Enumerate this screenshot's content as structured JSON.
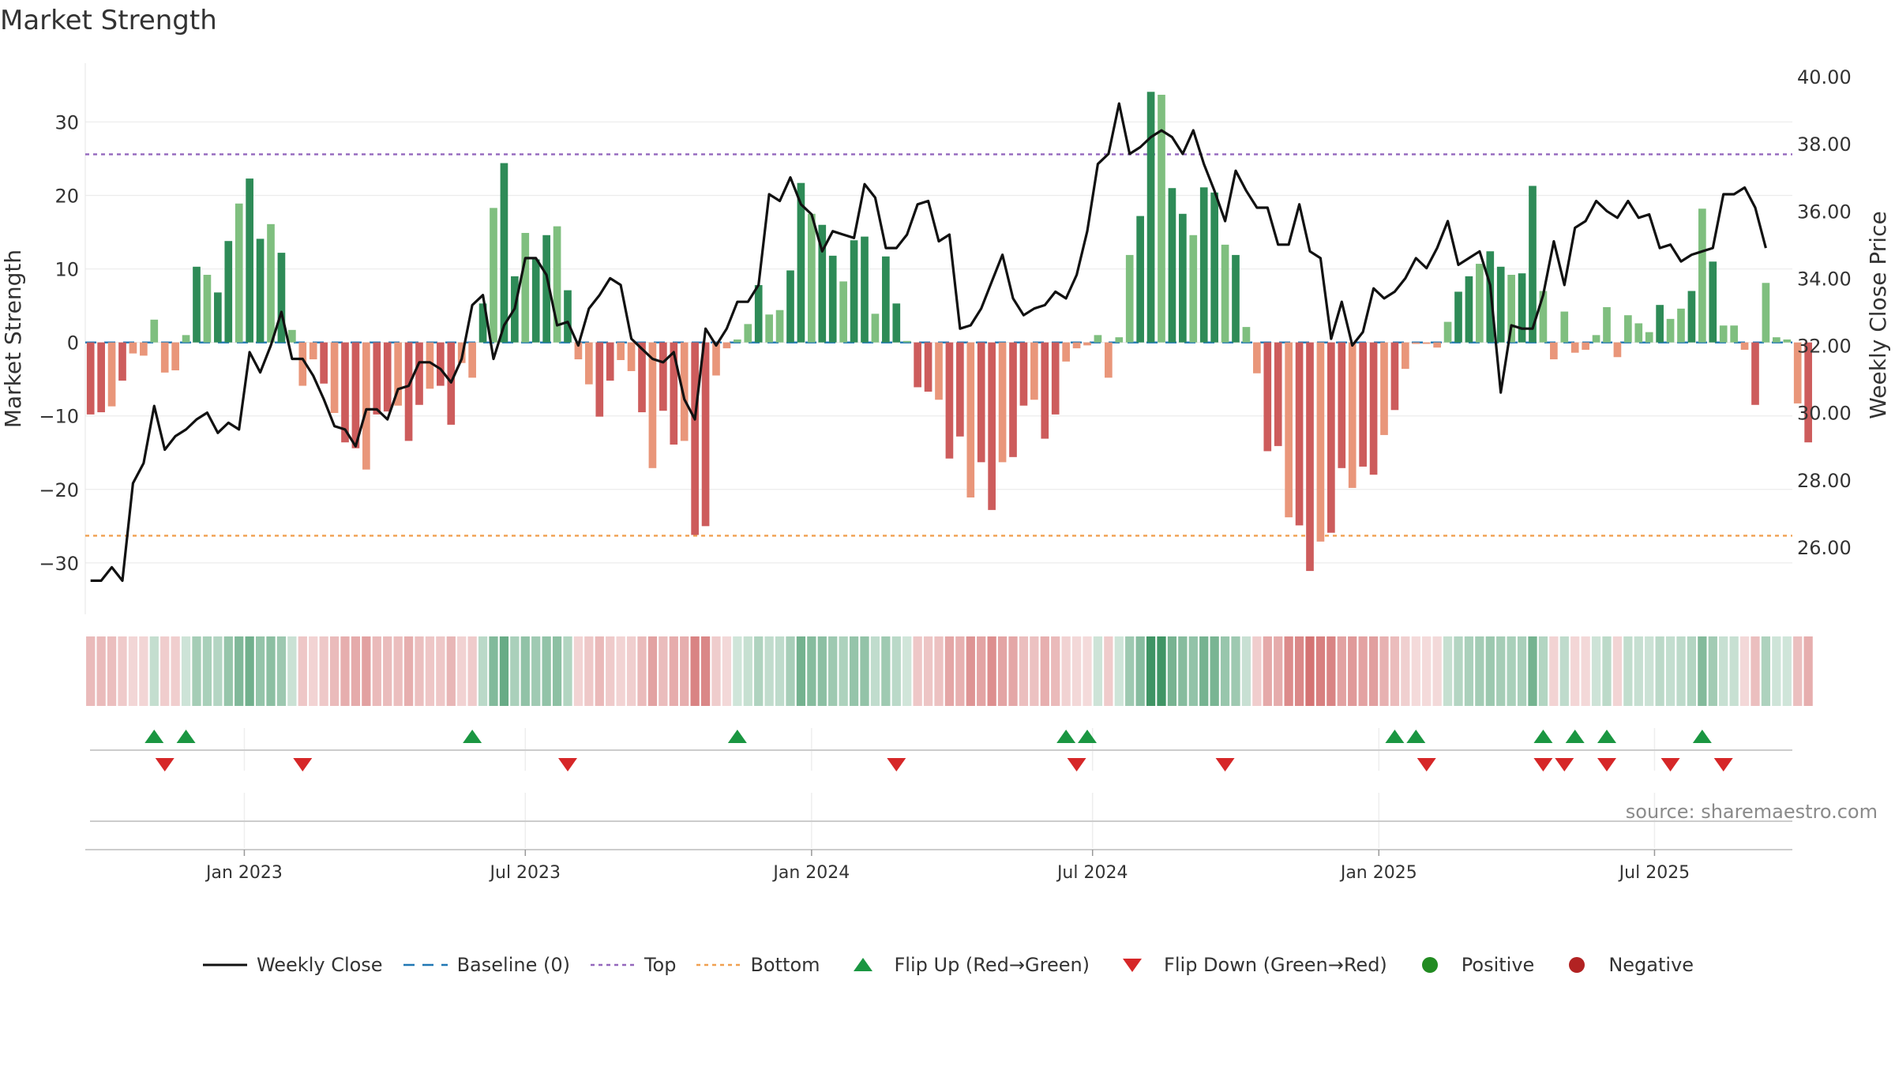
{
  "title": "Market Strength",
  "source": "source: sharemaestro.com",
  "colors": {
    "strong_green": "#2e8b57",
    "light_green": "#7fbf7f",
    "strong_red": "#cd5c5c",
    "light_red": "#e9967a",
    "close_line": "#111111",
    "baseline": "#1f77b4",
    "top_line": "#9467bd",
    "bottom_line": "#f0a050",
    "flip_up": "#1a9641",
    "flip_down": "#d62728",
    "positive": "#228b22",
    "negative": "#b22222"
  },
  "legend": [
    {
      "key": "close",
      "label": "Weekly Close"
    },
    {
      "key": "baseline",
      "label": "Baseline (0)"
    },
    {
      "key": "top",
      "label": "Top"
    },
    {
      "key": "bottom",
      "label": "Bottom"
    },
    {
      "key": "flipup",
      "label": "Flip Up (Red→Green)"
    },
    {
      "key": "flipdown",
      "label": "Flip Down (Green→Red)"
    },
    {
      "key": "positive",
      "label": "Positive"
    },
    {
      "key": "negative",
      "label": "Negative"
    }
  ],
  "chart_data": {
    "type": "bar",
    "title": "Market Strength",
    "ylabel": "Market Strength",
    "y2label": "Weekly Close Price",
    "ylim": [
      -37,
      38
    ],
    "y2lim": [
      24.0,
      40.4
    ],
    "yticks": [
      30,
      20,
      10,
      0,
      -10,
      -20,
      -30
    ],
    "ytick_labels": [
      "30",
      "20",
      "10",
      "0",
      "−10",
      "−20",
      "−30"
    ],
    "y2ticks": [
      40,
      38,
      36,
      34,
      32,
      30,
      28,
      26
    ],
    "y2tick_labels": [
      "40.00",
      "38.00",
      "36.00",
      "34.00",
      "32.00",
      "30.00",
      "28.00",
      "26.00"
    ],
    "xlim": [
      0,
      161
    ],
    "xticks": [
      15,
      41.5,
      68.5,
      95,
      122,
      148
    ],
    "xtick_labels": [
      "Jan 2023",
      "Jul 2023",
      "Jan 2024",
      "Jul 2024",
      "Jan 2025",
      "Jul 2025"
    ],
    "top_level": 25.6,
    "bottom_level": -26.3,
    "strength": [
      -9.8,
      -9.5,
      -8.7,
      -5.2,
      -1.5,
      -1.8,
      3.1,
      -4.1,
      -3.8,
      1,
      10.3,
      9.2,
      6.8,
      13.8,
      18.9,
      22.3,
      14.1,
      16.1,
      12.2,
      1.7,
      -5.9,
      -2.3,
      -5.6,
      -9.6,
      -13.6,
      -14.4,
      -17.3,
      -9.8,
      -9.4,
      -8.6,
      -13.4,
      -8.5,
      -6.3,
      -5.9,
      -11.2,
      -2.8,
      -4.8,
      5.3,
      18.3,
      24.4,
      9,
      14.9,
      11.3,
      14.6,
      15.8,
      7.1,
      -2.3,
      -5.7,
      -10.1,
      -5.2,
      -2.4,
      -3.9,
      -9.5,
      -17.1,
      -9.3,
      -13.9,
      -13.4,
      -26.2,
      -25,
      -4.5,
      -0.8,
      0.4,
      2.5,
      7.8,
      3.8,
      4.4,
      9.8,
      21.7,
      17.5,
      16,
      11.8,
      8.3,
      13.9,
      14.4,
      3.9,
      11.7,
      5.3,
      0.2,
      -6.1,
      -6.7,
      -7.8,
      -15.8,
      -12.8,
      -21.1,
      -16.3,
      -22.8,
      -16.3,
      -15.6,
      -8.6,
      -7.8,
      -13.1,
      -9.8,
      -2.6,
      -0.8,
      -0.4,
      1,
      -4.8,
      0.7,
      11.9,
      17.2,
      34.1,
      33.7,
      21,
      17.5,
      14.6,
      21.1,
      20.4,
      13.3,
      11.9,
      2.1,
      -4.2,
      -14.8,
      -14.1,
      -23.8,
      -24.9,
      -31.1,
      -27.1,
      -25.9,
      -17.1,
      -19.8,
      -16.9,
      -18,
      -12.6,
      -9.2,
      -3.6,
      -0.2,
      -0.2,
      -0.7,
      2.8,
      6.9,
      9,
      10.7,
      12.4,
      10.3,
      9.2,
      9.4,
      21.3,
      7,
      -2.3,
      4.2,
      -1.4,
      -1,
      1,
      4.8,
      -2,
      3.7,
      2.6,
      1.4,
      5.1,
      3.2,
      4.6,
      7,
      18.2,
      11,
      2.3,
      2.3,
      -1,
      -8.5,
      8.1,
      0.7,
      0.4,
      -8.3,
      -13.6
    ],
    "close": [
      25.0,
      25.0,
      25.4,
      25.0,
      27.9,
      28.5,
      30.2,
      28.9,
      29.3,
      29.5,
      29.8,
      30.0,
      29.4,
      29.7,
      29.5,
      31.8,
      31.2,
      32.0,
      33.0,
      31.6,
      31.6,
      31.1,
      30.4,
      29.6,
      29.5,
      29.0,
      30.1,
      30.1,
      29.8,
      30.7,
      30.8,
      31.5,
      31.5,
      31.3,
      30.9,
      31.6,
      33.2,
      33.5,
      31.6,
      32.6,
      33.1,
      34.6,
      34.6,
      34.1,
      32.6,
      32.7,
      32.0,
      33.1,
      33.5,
      34.0,
      33.8,
      32.2,
      31.9,
      31.6,
      31.5,
      31.8,
      30.4,
      29.8,
      32.5,
      32.0,
      32.5,
      33.3,
      33.3,
      33.8,
      36.5,
      36.3,
      37.0,
      36.2,
      35.9,
      34.8,
      35.4,
      35.3,
      35.2,
      36.8,
      36.4,
      34.9,
      34.9,
      35.3,
      36.2,
      36.3,
      35.1,
      35.3,
      32.5,
      32.6,
      33.1,
      33.9,
      34.7,
      33.4,
      32.9,
      33.1,
      33.2,
      33.6,
      33.4,
      34.1,
      35.4,
      37.4,
      37.7,
      39.2,
      37.7,
      37.9,
      38.2,
      38.4,
      38.2,
      37.7,
      38.4,
      37.4,
      36.6,
      35.7,
      37.2,
      36.6,
      36.1,
      36.1,
      35.0,
      35.0,
      36.2,
      34.8,
      34.6,
      32.2,
      33.3,
      32.0,
      32.4,
      33.7,
      33.4,
      33.6,
      34.0,
      34.6,
      34.3,
      34.9,
      35.7,
      34.4,
      34.6,
      34.8,
      33.8,
      30.6,
      32.6,
      32.5,
      32.5,
      33.5,
      35.1,
      33.8,
      35.5,
      35.7,
      36.3,
      36.0,
      35.8,
      36.3,
      35.8,
      35.9,
      34.9,
      35.0,
      34.5,
      34.7,
      34.8,
      34.9,
      36.5,
      36.5,
      36.7,
      36.1,
      34.9
    ],
    "flip_up_idx": [
      6,
      9,
      36,
      61,
      92,
      94,
      123,
      125,
      137,
      140,
      143,
      152
    ],
    "flip_down_idx": [
      7,
      20,
      45,
      76,
      93,
      107,
      126,
      137,
      139,
      143,
      149,
      154
    ]
  }
}
